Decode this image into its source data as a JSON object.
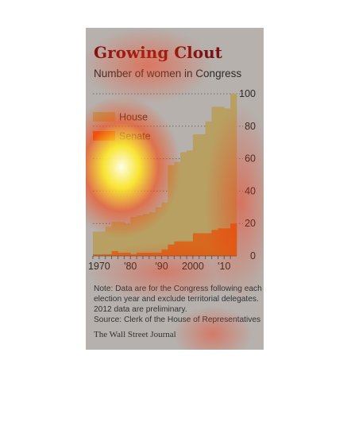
{
  "colors": {
    "background": "#b6b1ad",
    "title": "#7a1012",
    "house": "#b8a062",
    "senate": "#d8681e",
    "grid": "#6f6b67"
  },
  "chart_data": {
    "type": "bar",
    "stacked": false,
    "title": "Growing Clout",
    "subtitle": "Number of women in Congress",
    "x_ticks": [
      "1970",
      "'80",
      "'90",
      "2000",
      "'10"
    ],
    "y_ticks": [
      "0",
      "20",
      "40",
      "60",
      "80",
      "100"
    ],
    "ylim": [
      0,
      100
    ],
    "grid": true,
    "legend_position": "top-left",
    "x": [
      1968,
      1970,
      1972,
      1974,
      1976,
      1978,
      1980,
      1982,
      1984,
      1986,
      1988,
      1990,
      1992,
      1994,
      1996,
      1998,
      2000,
      2002,
      2004,
      2006,
      2008,
      2010,
      2012
    ],
    "series": [
      {
        "name": "House",
        "color": "#b8a062",
        "values": [
          15,
          15,
          18,
          21,
          21,
          20,
          24,
          25,
          26,
          27,
          30,
          33,
          56,
          58,
          64,
          65,
          75,
          75,
          83,
          92,
          92,
          91,
          100
        ]
      },
      {
        "name": "Senate",
        "color": "#d8681e",
        "values": [
          1,
          1,
          1,
          3,
          2,
          2,
          1,
          2,
          2,
          2,
          2,
          4,
          7,
          9,
          9,
          9,
          14,
          14,
          14,
          16,
          17,
          17,
          20
        ]
      }
    ]
  },
  "note": "Note: Data are for the Congress following each election year and exclude territorial delegates. 2012 data are preliminary.",
  "source": "Source: Clerk of the House of Representatives",
  "publisher": "The Wall Street Journal"
}
